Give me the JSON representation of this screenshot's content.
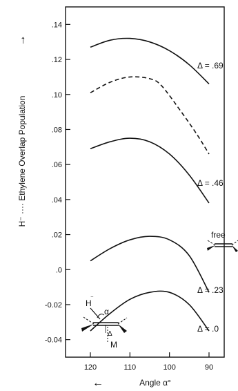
{
  "chart_data": {
    "type": "line",
    "title": "",
    "xlabel": "Angle   α°",
    "ylabel": "H⁻ ···· Ethylene Overlap Population",
    "x_direction_arrow": "←",
    "y_direction_arrow": "→",
    "xlim": [
      130,
      80
    ],
    "ylim": [
      -0.05,
      0.15
    ],
    "xticks": [
      "120",
      "110",
      "100",
      "90"
    ],
    "yticks": [
      ".14",
      ".12",
      ".10",
      ".08",
      ".06",
      ".04",
      ".02",
      ".0",
      "-0.02",
      "-0.04"
    ],
    "grid": false,
    "series": [
      {
        "name": "Δ = .69",
        "style": "solid",
        "points": [
          [
            120,
            0.127
          ],
          [
            115,
            0.131
          ],
          [
            110,
            0.132
          ],
          [
            105,
            0.13
          ],
          [
            100,
            0.125
          ],
          [
            95,
            0.117
          ],
          [
            90,
            0.106
          ]
        ]
      },
      {
        "name": "free",
        "style": "dashed",
        "points": [
          [
            120,
            0.101
          ],
          [
            115,
            0.107
          ],
          [
            110,
            0.11
          ],
          [
            105,
            0.109
          ],
          [
            102,
            0.105
          ],
          [
            97,
            0.09
          ],
          [
            93,
            0.077
          ],
          [
            90,
            0.066
          ]
        ]
      },
      {
        "name": "Δ = .46",
        "style": "solid",
        "points": [
          [
            120,
            0.069
          ],
          [
            115,
            0.073
          ],
          [
            110,
            0.075
          ],
          [
            105,
            0.073
          ],
          [
            100,
            0.066
          ],
          [
            95,
            0.054
          ],
          [
            90,
            0.038
          ]
        ]
      },
      {
        "name": "Δ = .23",
        "style": "solid",
        "points": [
          [
            120,
            0.005
          ],
          [
            115,
            0.012
          ],
          [
            110,
            0.017
          ],
          [
            105,
            0.019
          ],
          [
            100,
            0.017
          ],
          [
            95,
            0.008
          ],
          [
            90,
            -0.013
          ]
        ]
      },
      {
        "name": "Δ = .0",
        "style": "solid",
        "points": [
          [
            120,
            -0.035
          ],
          [
            115,
            -0.025
          ],
          [
            110,
            -0.017
          ],
          [
            105,
            -0.013
          ],
          [
            100,
            -0.013
          ],
          [
            95,
            -0.02
          ],
          [
            90,
            -0.035
          ]
        ]
      }
    ],
    "inset_labels": {
      "hydride": "H",
      "hydride_charge": "⁻",
      "angle": "α",
      "displacement": "Δ",
      "metal": "M"
    }
  }
}
